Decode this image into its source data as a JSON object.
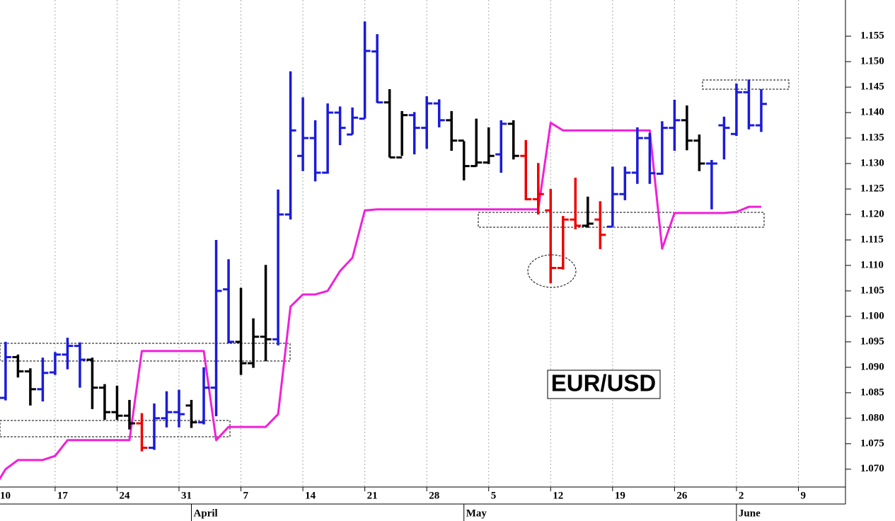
{
  "chart_data": {
    "type": "ohlc",
    "title": "EUR/USD",
    "x": [
      0,
      1,
      2,
      3,
      4,
      5,
      6,
      7,
      8,
      9,
      10,
      11,
      12,
      13,
      14,
      15,
      16,
      17,
      18,
      19,
      20,
      21,
      22,
      23,
      24,
      25,
      26,
      27,
      28,
      29,
      30,
      31,
      32,
      33,
      34,
      35,
      36,
      37,
      38,
      39,
      40,
      41,
      42,
      43,
      44,
      45,
      46,
      47,
      48,
      49,
      50,
      51,
      52,
      53,
      54,
      55,
      56,
      57,
      58,
      59,
      60,
      61,
      62
    ],
    "open": [
      null,
      1.084,
      1.092,
      1.0892,
      1.0857,
      1.089,
      1.0925,
      1.0942,
      1.0915,
      1.086,
      1.0812,
      1.0805,
      1.079,
      1.0742,
      1.08,
      1.0812,
      1.0825,
      1.0792,
      1.086,
      1.1053,
      1.095,
      1.0908,
      1.096,
      1.0955,
      1.12,
      1.1315,
      1.135,
      1.1282,
      1.14,
      1.1357,
      1.1388,
      1.152,
      1.142,
      1.1312,
      1.1395,
      1.137,
      1.1418,
      1.1385,
      1.1345,
      1.1295,
      1.1302,
      1.1318,
      1.1378,
      1.1315,
      1.123,
      1.1208,
      1.1095,
      1.119,
      1.1178,
      1.119,
      1.1176,
      1.124,
      1.1282,
      1.135,
      1.128,
      1.137,
      1.1385,
      1.1345,
      1.13,
      1.1375,
      1.1358,
      1.144,
      1.1375
    ],
    "high": [
      null,
      1.095,
      1.0925,
      1.0898,
      1.0919,
      1.093,
      1.0958,
      1.0949,
      1.0919,
      1.0867,
      1.0864,
      1.0836,
      1.081,
      1.0829,
      1.0853,
      1.0856,
      1.0836,
      1.09,
      1.115,
      1.1112,
      1.1056,
      1.0996,
      1.1101,
      1.1249,
      1.1481,
      1.143,
      1.1385,
      1.1418,
      1.1412,
      1.141,
      1.1579,
      1.1554,
      1.1446,
      1.1403,
      1.1401,
      1.1432,
      1.1426,
      1.1403,
      1.1344,
      1.1388,
      1.1371,
      1.1385,
      1.1385,
      1.1346,
      1.1301,
      1.125,
      1.1197,
      1.1272,
      1.1235,
      1.1226,
      1.1294,
      1.1294,
      1.1371,
      1.136,
      1.1383,
      1.1425,
      1.1414,
      1.1357,
      1.1307,
      1.1392,
      1.1457,
      1.1465,
      1.1446
    ],
    "low": [
      null,
      1.0835,
      1.088,
      1.0825,
      1.0833,
      1.0885,
      1.0896,
      1.086,
      1.0818,
      1.0797,
      1.0797,
      1.0778,
      1.0735,
      1.0738,
      1.0782,
      1.0782,
      1.0781,
      1.0788,
      1.0804,
      1.0947,
      1.0885,
      1.0899,
      1.0912,
      1.0943,
      1.119,
      1.1285,
      1.1265,
      1.128,
      1.1336,
      1.1357,
      1.1388,
      1.1419,
      1.1312,
      1.1315,
      1.1318,
      1.1329,
      1.1371,
      1.1325,
      1.1267,
      1.1294,
      1.1299,
      1.1282,
      1.1308,
      1.1228,
      1.12,
      1.1065,
      1.1092,
      1.1171,
      1.1174,
      1.1132,
      1.1176,
      1.1228,
      1.126,
      1.126,
      1.1278,
      1.1325,
      1.1326,
      1.1285,
      1.121,
      1.1308,
      1.1354,
      1.1367,
      1.1362
    ],
    "close": [
      null,
      1.092,
      1.0892,
      1.0857,
      1.0889,
      1.0925,
      1.0942,
      1.0915,
      1.086,
      1.0812,
      1.0805,
      1.079,
      1.0742,
      1.08,
      1.0812,
      1.0808,
      1.0792,
      1.086,
      1.105,
      1.095,
      1.0908,
      1.096,
      1.0955,
      1.12,
      1.1365,
      1.135,
      1.1282,
      1.14,
      1.137,
      1.139,
      1.1521,
      1.142,
      1.1312,
      1.1395,
      1.137,
      1.1418,
      1.1385,
      1.1345,
      1.1295,
      1.1302,
      1.1315,
      1.1378,
      1.1315,
      1.123,
      1.124,
      1.1095,
      1.119,
      1.1178,
      1.1182,
      1.116,
      1.124,
      1.1282,
      1.135,
      1.1281,
      1.137,
      1.1385,
      1.1345,
      1.13,
      1.13,
      1.137,
      1.144,
      1.1375,
      1.1417
    ],
    "bar_colors": [
      null,
      "#1a1ad9",
      "#000000",
      "#000000",
      "#1a1ad9",
      "#1a1ad9",
      "#1a1ad9",
      "#1a1ad9",
      "#000000",
      "#000000",
      "#000000",
      "#000000",
      "#ee0000",
      "#1a1ad9",
      "#1a1ad9",
      "#1a1ad9",
      "#000000",
      "#1a1ad9",
      "#1a1ad9",
      "#1a1ad9",
      "#000000",
      "#000000",
      "#000000",
      "#1a1ad9",
      "#1a1ad9",
      "#1a1ad9",
      "#1a1ad9",
      "#1a1ad9",
      "#1a1ad9",
      "#1a1ad9",
      "#1a1ad9",
      "#1a1ad9",
      "#000000",
      "#000000",
      "#1a1ad9",
      "#1a1ad9",
      "#1a1ad9",
      "#000000",
      "#000000",
      "#000000",
      "#000000",
      "#1a1ad9",
      "#000000",
      "#ee0000",
      "#ee0000",
      "#ee0000",
      "#ee0000",
      "#ee0000",
      "#000000",
      "#ee0000",
      "#1a1ad9",
      "#1a1ad9",
      "#1a1ad9",
      "#1a1ad9",
      "#1a1ad9",
      "#1a1ad9",
      "#000000",
      "#000000",
      "#1a1ad9",
      "#1a1ad9",
      "#1a1ad9",
      "#1a1ad9",
      "#1a1ad9"
    ],
    "series": [
      {
        "color": "#f020d8",
        "values": [
          1.066,
          1.07,
          1.0718,
          1.0718,
          1.0718,
          1.0726,
          1.0757,
          1.0757,
          1.0757,
          1.0757,
          1.0757,
          1.0757,
          1.0932,
          1.0932,
          1.0932,
          1.0932,
          1.0932,
          1.0932,
          1.0757,
          1.0783,
          1.0783,
          1.0783,
          1.0783,
          1.0808,
          1.1019,
          1.1043,
          1.1043,
          1.105,
          1.1089,
          1.1115,
          1.1208,
          1.121,
          1.121,
          1.121,
          1.121,
          1.121,
          1.121,
          1.121,
          1.121,
          1.121,
          1.121,
          1.121,
          1.121,
          1.121,
          1.121,
          1.138,
          1.1365,
          1.1365,
          1.1365,
          1.1365,
          1.1365,
          1.1365,
          1.1365,
          1.1365,
          1.1133,
          1.1203,
          1.1203,
          1.1203,
          1.1203,
          1.1203,
          1.1205,
          1.1215,
          1.1215
        ]
      }
    ],
    "xlim": [
      0.55,
      68.8
    ],
    "xticks": [
      {
        "value": 0,
        "label": "10"
      },
      {
        "value": 5,
        "label": "17"
      },
      {
        "value": 10,
        "label": "24"
      },
      {
        "value": 15,
        "label": "31"
      },
      {
        "value": 20,
        "label": "7"
      },
      {
        "value": 25,
        "label": "14"
      },
      {
        "value": 30,
        "label": "21"
      },
      {
        "value": 35,
        "label": "28"
      },
      {
        "value": 40,
        "label": "5"
      },
      {
        "value": 45,
        "label": "12"
      },
      {
        "value": 50,
        "label": "19"
      },
      {
        "value": 55,
        "label": "26"
      },
      {
        "value": 60,
        "label": "2"
      },
      {
        "value": 65,
        "label": "9"
      }
    ],
    "months": [
      {
        "value": 16,
        "label": "April"
      },
      {
        "value": 38,
        "label": "May"
      },
      {
        "value": 60,
        "label": "June"
      }
    ],
    "ylim": [
      1.0665,
      1.1621
    ],
    "yticks": [
      {
        "value": 1.07,
        "label": "1.070"
      },
      {
        "value": 1.075,
        "label": "1.075"
      },
      {
        "value": 1.08,
        "label": "1.080"
      },
      {
        "value": 1.085,
        "label": "1.085"
      },
      {
        "value": 1.09,
        "label": "1.090"
      },
      {
        "value": 1.095,
        "label": "1.095"
      },
      {
        "value": 1.1,
        "label": "1.100"
      },
      {
        "value": 1.105,
        "label": "1.105"
      },
      {
        "value": 1.11,
        "label": "1.110"
      },
      {
        "value": 1.115,
        "label": "1.115"
      },
      {
        "value": 1.12,
        "label": "1.120"
      },
      {
        "value": 1.125,
        "label": "1.125"
      },
      {
        "value": 1.13,
        "label": "1.130"
      },
      {
        "value": 1.135,
        "label": "1.135"
      },
      {
        "value": 1.14,
        "label": "1.140"
      },
      {
        "value": 1.145,
        "label": "1.145"
      },
      {
        "value": 1.15,
        "label": "1.150"
      },
      {
        "value": 1.155,
        "label": "1.155"
      }
    ],
    "grid": "x"
  }
}
